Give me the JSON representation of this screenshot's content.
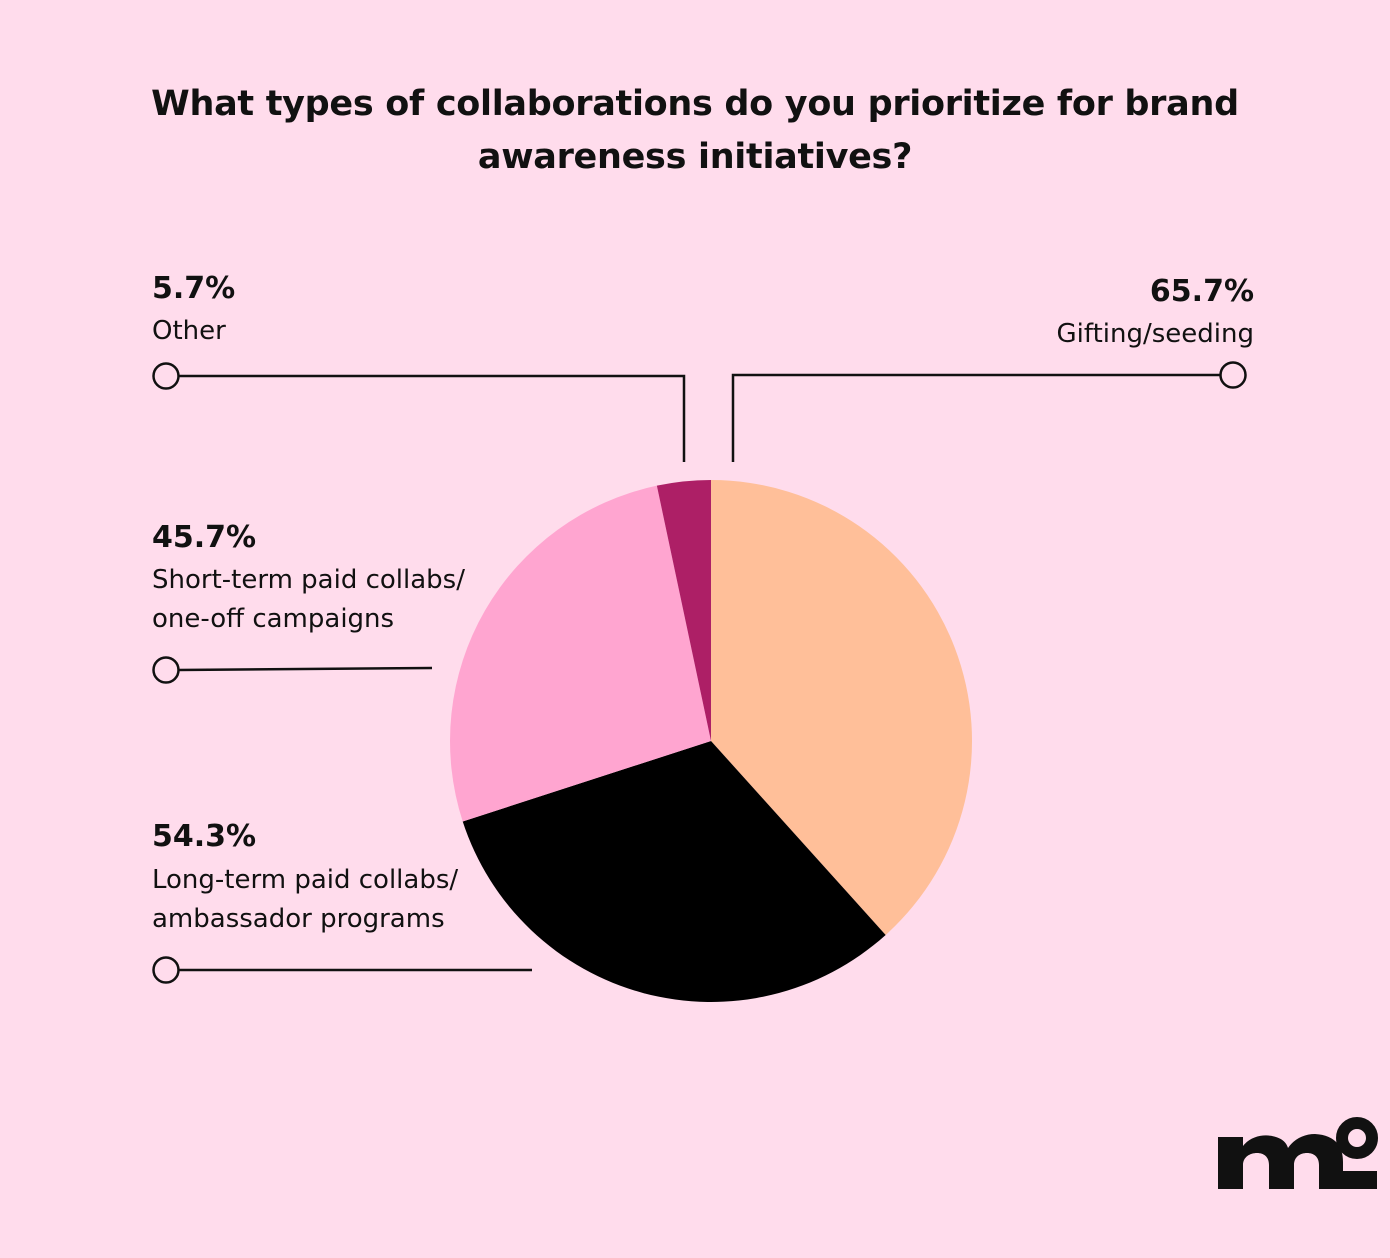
{
  "chart_data": {
    "type": "pie",
    "title": "What types of collaborations do you prioritize for brand awareness initiatives?",
    "slices": [
      {
        "label": "Gifting/seeding",
        "value": 65.7,
        "value_label": "65.7%",
        "color": "#FFBF99"
      },
      {
        "label": "Long-term paid collabs/ ambassador programs",
        "label_lines": [
          "Long-term paid collabs/",
          "ambassador programs"
        ],
        "value": 54.3,
        "value_label": "54.3%",
        "color": "#000000"
      },
      {
        "label": "Short-term paid collabs/ one-off campaigns",
        "label_lines": [
          "Short-term paid collabs/",
          "one-off campaigns"
        ],
        "value": 45.7,
        "value_label": "45.7%",
        "color": "#FFA5D0"
      },
      {
        "label": "Other",
        "value": 5.7,
        "value_label": "5.7%",
        "color": "#AD1F66"
      }
    ]
  },
  "colors": {
    "background": "#FFDCEC",
    "text": "#111111"
  },
  "logo": {
    "text": "mo",
    "color": "#111111"
  }
}
